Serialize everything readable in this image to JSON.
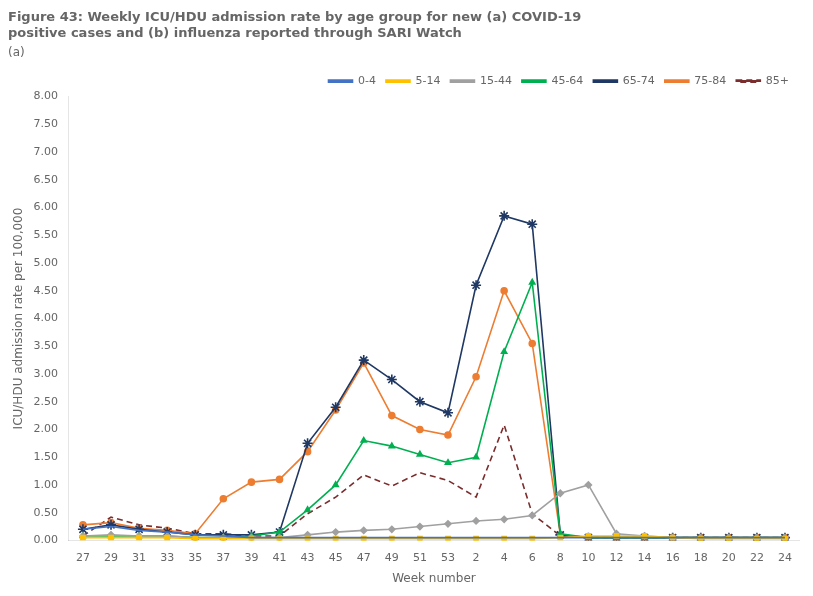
{
  "chart_data": {
    "type": "line",
    "title": "Figure 43: Weekly ICU/HDU admission rate by age group for new (a) COVID-19\npositive cases and (b) influenza reported through SARI Watch",
    "subtitle": "(a)",
    "xlabel": "Week number",
    "ylabel": "ICU/HDU admission rate per 100,000",
    "categories": [
      "27",
      "29",
      "31",
      "33",
      "35",
      "37",
      "39",
      "41",
      "43",
      "45",
      "47",
      "49",
      "51",
      "53",
      "2",
      "4",
      "6",
      "8",
      "10",
      "12",
      "14",
      "16",
      "18",
      "20",
      "22",
      "24"
    ],
    "series": [
      {
        "name": "0-4",
        "color": "#4472C4",
        "marker": "none",
        "line_style": "solid",
        "values": [
          0.2,
          0.25,
          0.18,
          0.15,
          0.1,
          0.08,
          0.05,
          0.05,
          0.05,
          0.05,
          0.05,
          0.05,
          0.05,
          0.05,
          0.05,
          0.05,
          0.05,
          0.05,
          0.05,
          0.05,
          0.05,
          0.05,
          0.05,
          0.05,
          0.05,
          0.05
        ]
      },
      {
        "name": "5-14",
        "color": "#FFC000",
        "marker": "square",
        "line_style": "solid",
        "values": [
          0.05,
          0.05,
          0.05,
          0.05,
          0.03,
          0.03,
          0.03,
          0.03,
          0.03,
          0.03,
          0.03,
          0.03,
          0.03,
          0.03,
          0.03,
          0.03,
          0.03,
          0.05,
          0.08,
          0.08,
          0.08,
          0.05,
          0.03,
          0.03,
          0.03,
          0.03
        ]
      },
      {
        "name": "15-44",
        "color": "#A0A0A0",
        "marker": "diamond",
        "line_style": "solid",
        "values": [
          0.08,
          0.1,
          0.08,
          0.08,
          0.05,
          0.05,
          0.05,
          0.05,
          0.1,
          0.15,
          0.18,
          0.2,
          0.25,
          0.3,
          0.35,
          0.38,
          0.45,
          0.85,
          1.0,
          0.12,
          0.08,
          0.05,
          0.05,
          0.05,
          0.05,
          0.05
        ]
      },
      {
        "name": "45-64",
        "color": "#00B050",
        "marker": "triangle",
        "line_style": "solid",
        "values": [
          0.08,
          0.08,
          0.08,
          0.08,
          0.05,
          0.05,
          0.08,
          0.15,
          0.55,
          1.0,
          1.8,
          1.7,
          1.55,
          1.4,
          1.5,
          3.4,
          4.65,
          0.12,
          0.05,
          0.05,
          0.05,
          0.05,
          0.05,
          0.05,
          0.05,
          0.05
        ]
      },
      {
        "name": "65-74",
        "color": "#1F3864",
        "marker": "star",
        "line_style": "solid",
        "values": [
          0.2,
          0.28,
          0.2,
          0.15,
          0.1,
          0.1,
          0.1,
          0.15,
          1.75,
          2.4,
          3.25,
          2.9,
          2.5,
          2.3,
          4.6,
          5.85,
          5.7,
          0.1,
          0.05,
          0.05,
          0.05,
          0.05,
          0.05,
          0.05,
          0.05,
          0.05
        ]
      },
      {
        "name": "75-84",
        "color": "#ED7D31",
        "marker": "circle",
        "line_style": "solid",
        "values": [
          0.28,
          0.32,
          0.22,
          0.18,
          0.12,
          0.75,
          1.05,
          1.1,
          1.6,
          2.35,
          3.2,
          2.25,
          2.0,
          1.9,
          2.95,
          4.5,
          3.55,
          0.1,
          0.05,
          0.05,
          0.05,
          0.05,
          0.05,
          0.05,
          0.05,
          0.05
        ]
      },
      {
        "name": "85+",
        "color": "#7B2C2C",
        "marker": "none",
        "line_style": "dashed",
        "values": [
          0.08,
          0.42,
          0.28,
          0.22,
          0.12,
          0.12,
          0.08,
          0.08,
          0.48,
          0.78,
          1.18,
          0.98,
          1.22,
          1.08,
          0.78,
          2.08,
          0.48,
          0.08,
          0.05,
          0.05,
          0.05,
          0.05,
          0.05,
          0.05,
          0.05,
          0.05
        ]
      }
    ],
    "ylim": [
      0,
      8.0
    ],
    "yticks": [
      {
        "value": 0.0,
        "label": "0.00"
      },
      {
        "value": 0.5,
        "label": "0.50"
      },
      {
        "value": 1.0,
        "label": "1.00"
      },
      {
        "value": 1.5,
        "label": "1.50"
      },
      {
        "value": 2.0,
        "label": "2.00"
      },
      {
        "value": 2.5,
        "label": "2.50"
      },
      {
        "value": 3.0,
        "label": "3.00"
      },
      {
        "value": 3.5,
        "label": "3.50"
      },
      {
        "value": 4.0,
        "label": "4.00"
      },
      {
        "value": 4.5,
        "label": "4.50"
      },
      {
        "value": 5.0,
        "label": "5.00"
      },
      {
        "value": 5.5,
        "label": "5.50"
      },
      {
        "value": 6.0,
        "label": "6.00"
      },
      {
        "value": 6.5,
        "label": "6.50"
      },
      {
        "value": 7.0,
        "label": "7.00"
      },
      {
        "value": 7.5,
        "label": "7.50"
      },
      {
        "value": 8.0,
        "label": "8.00"
      }
    ],
    "grid": false,
    "legend": "upper right"
  }
}
